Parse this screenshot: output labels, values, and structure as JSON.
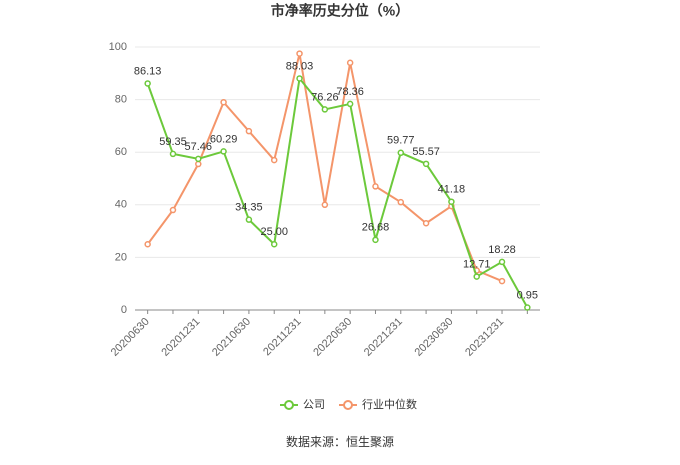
{
  "chart_data": {
    "type": "line",
    "title": "市净率历史分位（%）",
    "categories": [
      "20200630",
      null,
      "20201231",
      null,
      "20210630",
      null,
      "20211231",
      null,
      "20220630",
      null,
      "20221231",
      null,
      "20230630",
      null,
      "20231231",
      null
    ],
    "series": [
      {
        "name": "公司",
        "color": "#6cc93b",
        "values": [
          86.13,
          59.35,
          57.46,
          60.29,
          34.35,
          25.0,
          88.03,
          76.26,
          78.36,
          26.68,
          59.77,
          55.57,
          41.18,
          12.71,
          18.28,
          0.95
        ],
        "value_labels": [
          "86.13",
          "59.35",
          "57.46",
          "60.29",
          "34.35",
          "25.00",
          "88.03",
          "76.26",
          "78.36",
          "26.68",
          "59.77",
          "55.57",
          "41.18",
          "12.71",
          "18.28",
          "0.95"
        ]
      },
      {
        "name": "行业中位数",
        "color": "#f4956a",
        "values": [
          25,
          38,
          55.5,
          79,
          68,
          57,
          97.5,
          40,
          94,
          47,
          41,
          33,
          39.5,
          15,
          11,
          null
        ]
      }
    ],
    "ylim": [
      0,
      100
    ],
    "yticks": [
      0,
      20,
      40,
      60,
      80,
      100
    ],
    "grid": true,
    "source": "数据来源：恒生聚源"
  }
}
